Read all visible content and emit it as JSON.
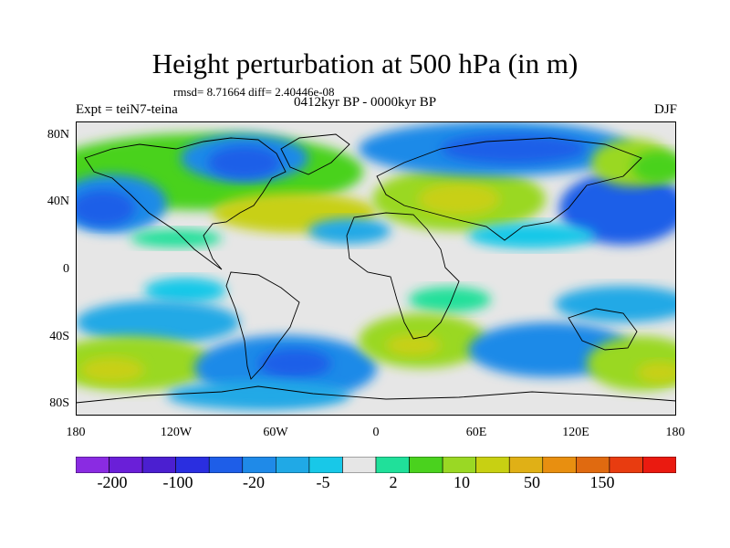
{
  "title": "Height perturbation at 500 hPa (in m)",
  "stats": "rmsd= 8.71664 diff= 2.40446e-08",
  "experiment": "Expt = teiN7-teina",
  "period": "0412kyr BP - 0000kyr BP",
  "season": "DJF",
  "lat_labels": [
    "80N",
    "40N",
    "0",
    "40S",
    "80S"
  ],
  "lon_labels": [
    "180",
    "120W",
    "60W",
    "0",
    "60E",
    "120E",
    "180"
  ],
  "colorbar": {
    "labels": [
      "-200",
      "-100",
      "-20",
      "-5",
      "2",
      "10",
      "50",
      "150"
    ],
    "colors": [
      "#8a2be2",
      "#6a1fd8",
      "#4b1fd0",
      "#2a2ee0",
      "#1e5ee8",
      "#1f8ae8",
      "#20a9e6",
      "#18c8e8",
      "#e6e6e6",
      "#20e09a",
      "#4ad21e",
      "#9ad824",
      "#c8d012",
      "#e0b016",
      "#e88f10",
      "#e06a10",
      "#e83c10",
      "#ea1a10"
    ]
  }
}
